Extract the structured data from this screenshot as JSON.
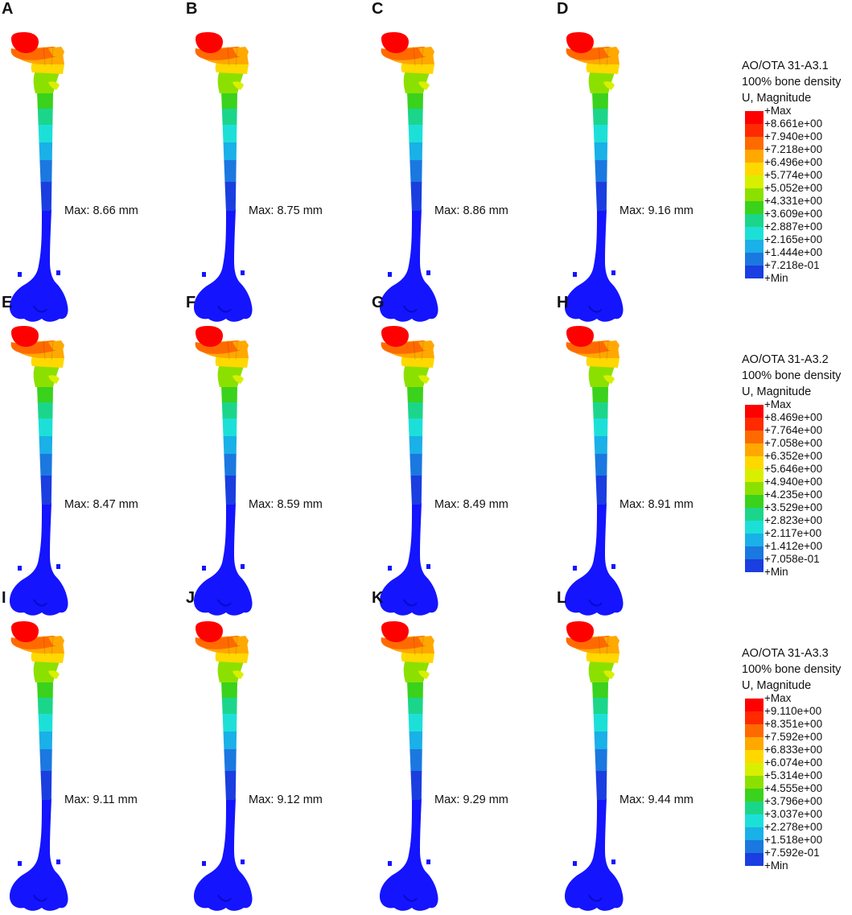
{
  "figure": {
    "panels": [
      {
        "letter": "A",
        "max": "Max: 8.66 mm"
      },
      {
        "letter": "B",
        "max": "Max: 8.75 mm"
      },
      {
        "letter": "C",
        "max": "Max: 8.86 mm"
      },
      {
        "letter": "D",
        "max": "Max: 9.16 mm"
      },
      {
        "letter": "E",
        "max": "Max: 8.47 mm"
      },
      {
        "letter": "F",
        "max": "Max: 8.59 mm"
      },
      {
        "letter": "G",
        "max": "Max: 8.49 mm"
      },
      {
        "letter": "H",
        "max": "Max: 8.91 mm"
      },
      {
        "letter": "I",
        "max": "Max: 9.11 mm"
      },
      {
        "letter": "J",
        "max": "Max: 9.12 mm"
      },
      {
        "letter": "K",
        "max": "Max: 9.29 mm"
      },
      {
        "letter": "L",
        "max": "Max: 9.44 mm"
      }
    ],
    "legends": [
      {
        "title": "AO/OTA 31-A3.1",
        "subtitle": "100% bone density",
        "variable": "U, Magnitude",
        "ticks": [
          "+Max",
          "+8.661e+00",
          "+7.940e+00",
          "+7.218e+00",
          "+6.496e+00",
          "+5.774e+00",
          "+5.052e+00",
          "+4.331e+00",
          "+3.609e+00",
          "+2.887e+00",
          "+2.165e+00",
          "+1.444e+00",
          "+7.218e-01",
          "+Min"
        ]
      },
      {
        "title": "AO/OTA 31-A3.2",
        "subtitle": "100% bone density",
        "variable": "U, Magnitude",
        "ticks": [
          "+Max",
          "+8.469e+00",
          "+7.764e+00",
          "+7.058e+00",
          "+6.352e+00",
          "+5.646e+00",
          "+4.940e+00",
          "+4.235e+00",
          "+3.529e+00",
          "+2.823e+00",
          "+2.117e+00",
          "+1.412e+00",
          "+7.058e-01",
          "+Min"
        ]
      },
      {
        "title": "AO/OTA 31-A3.3",
        "subtitle": "100% bone density",
        "variable": "U, Magnitude",
        "ticks": [
          "+Max",
          "+9.110e+00",
          "+8.351e+00",
          "+7.592e+00",
          "+6.833e+00",
          "+6.074e+00",
          "+5.314e+00",
          "+4.555e+00",
          "+3.796e+00",
          "+3.037e+00",
          "+2.278e+00",
          "+1.518e+00",
          "+7.592e-01",
          "+Min"
        ]
      }
    ],
    "colormap": [
      "#ff0000",
      "#ff2a00",
      "#ff6a00",
      "#ffa800",
      "#ffd800",
      "#d8f000",
      "#8ce000",
      "#3ad21c",
      "#1bd68a",
      "#1ce0d8",
      "#1ab0e8",
      "#1a78e0",
      "#1a3ee0"
    ],
    "bone_color": "#1414ff"
  }
}
